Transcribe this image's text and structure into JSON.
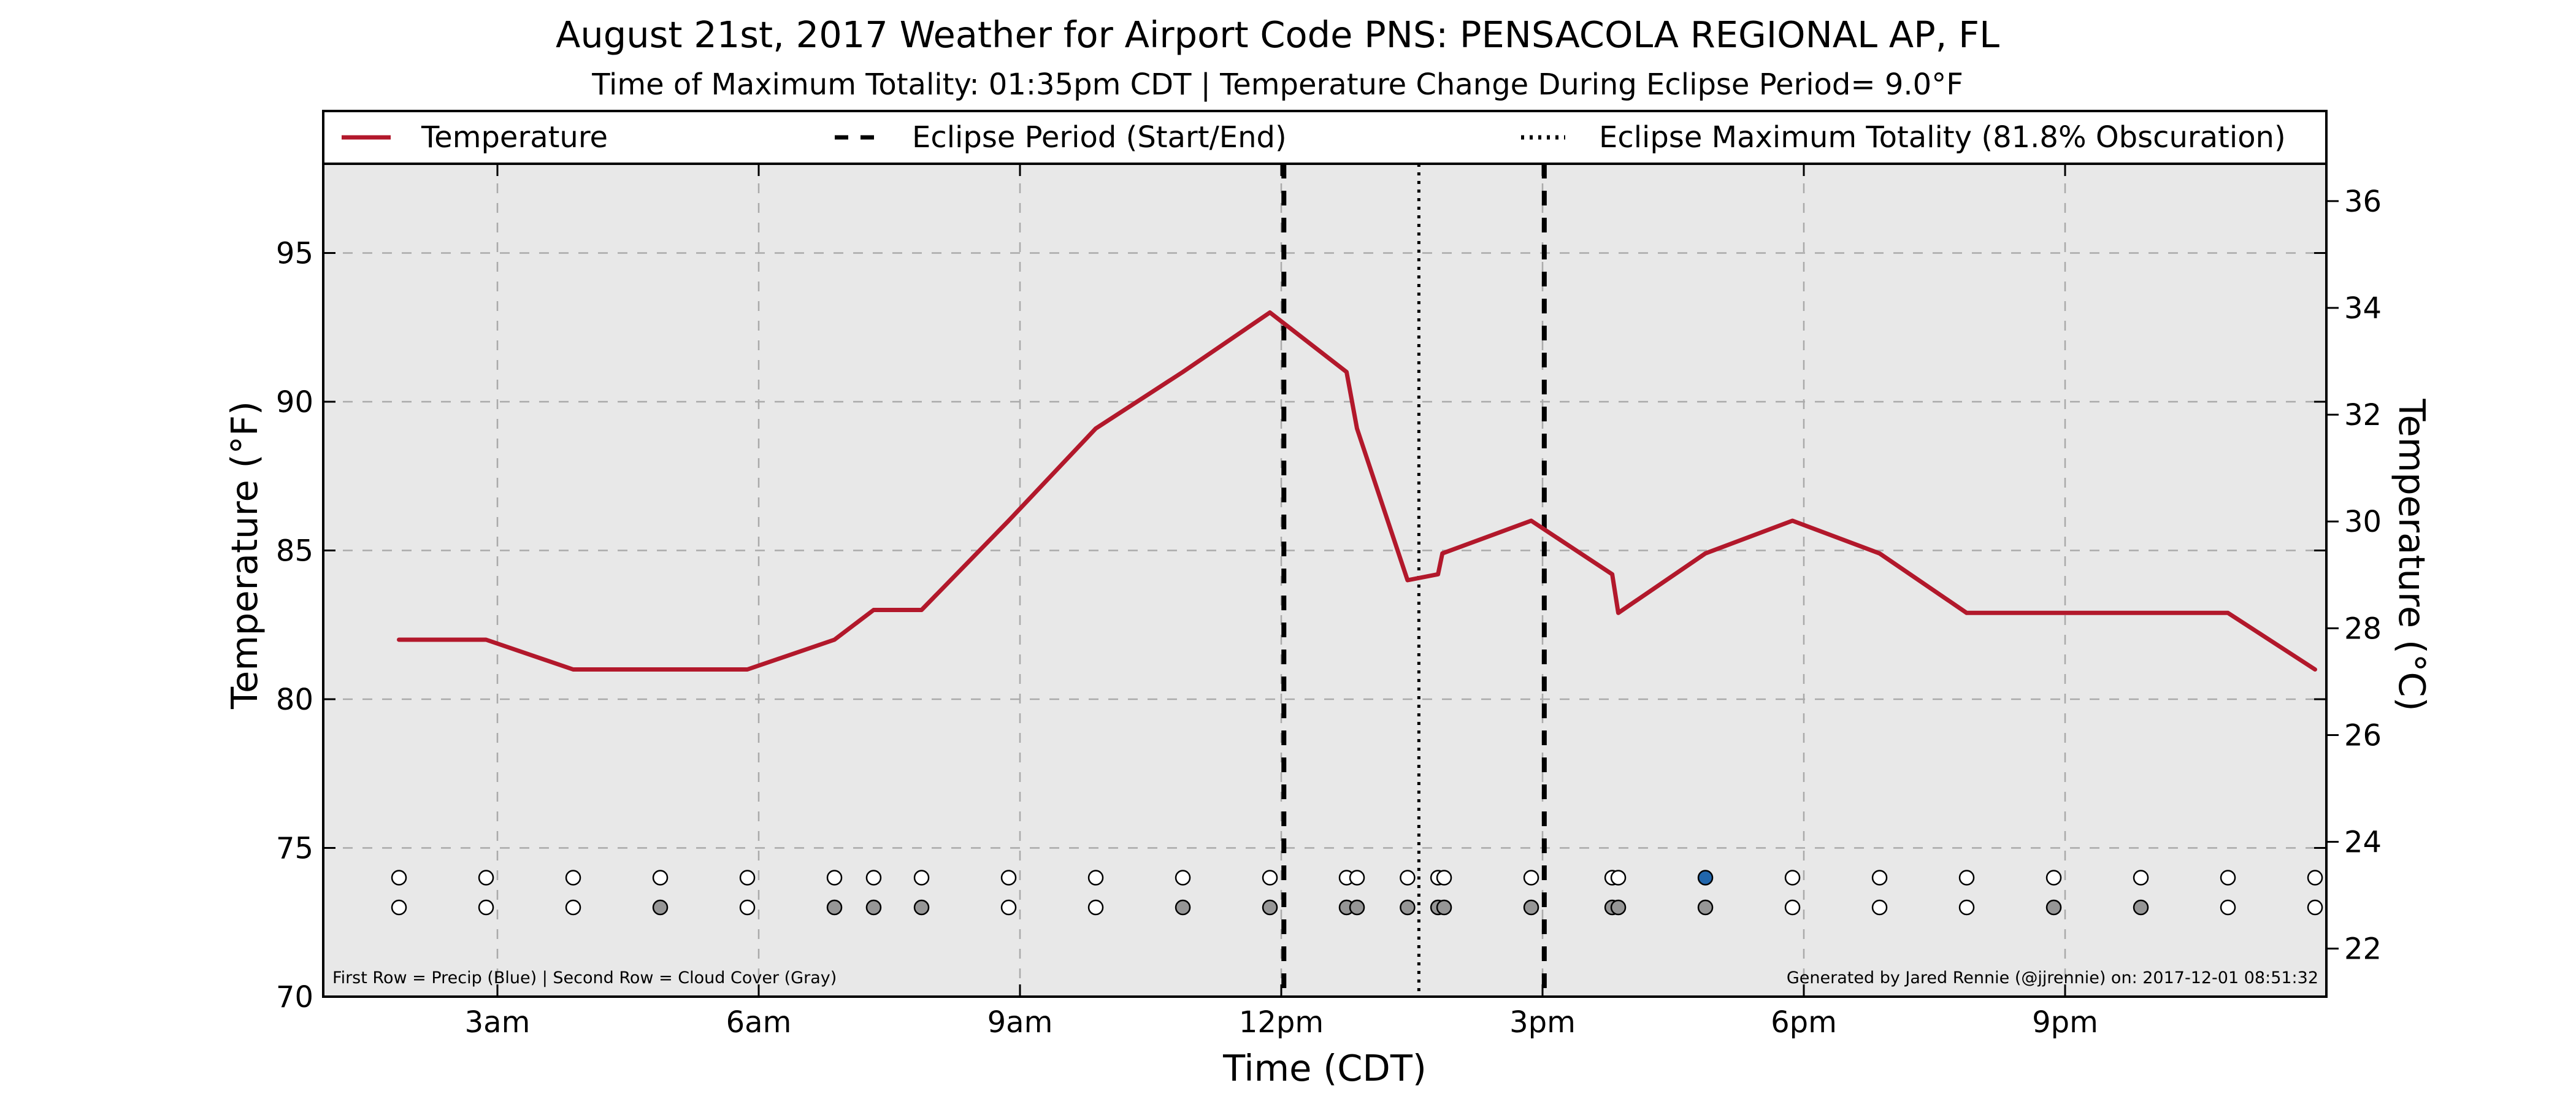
{
  "chart_data": {
    "type": "line",
    "title": "August 21st, 2017 Weather for Airport Code PNS: PENSACOLA REGIONAL AP, FL",
    "subtitle": "Time of Maximum Totality: 01:35pm CDT | Temperature Change During Eclipse Period= 9.0°F",
    "xlabel": "Time (CDT)",
    "ylabel": "Temperature (°F)",
    "y2label": "Temperature (°C)",
    "xlim_hours": [
      1.0,
      24.0
    ],
    "ylim": [
      70,
      98
    ],
    "y2lim": [
      21.1,
      36.7
    ],
    "x_ticks": [
      {
        "hour": 3,
        "label": "3am"
      },
      {
        "hour": 6,
        "label": "6am"
      },
      {
        "hour": 9,
        "label": "9am"
      },
      {
        "hour": 12,
        "label": "12pm"
      },
      {
        "hour": 15,
        "label": "3pm"
      },
      {
        "hour": 18,
        "label": "6pm"
      },
      {
        "hour": 21,
        "label": "9pm"
      }
    ],
    "y_ticks": [
      70,
      75,
      80,
      85,
      90,
      95
    ],
    "y2_ticks": [
      22,
      24,
      26,
      28,
      30,
      32,
      34,
      36
    ],
    "grid": true,
    "legend_position": "top",
    "legend": [
      {
        "label": "Temperature",
        "style": "solid"
      },
      {
        "label": "Eclipse Period (Start/End)",
        "style": "dashed"
      },
      {
        "label": "Eclipse Maximum Totality (81.8% Obscuration)",
        "style": "dotted"
      }
    ],
    "series": [
      {
        "name": "Temperature",
        "color": "#b2182b",
        "x": [
          1.87,
          2.87,
          3.87,
          4.87,
          5.87,
          6.87,
          7.32,
          7.87,
          8.87,
          9.87,
          10.87,
          11.87,
          12.75,
          12.87,
          13.45,
          13.8,
          13.85,
          14.87,
          15.8,
          15.87,
          16.87,
          17.87,
          18.87,
          19.87,
          20.87,
          21.87,
          22.87,
          23.87
        ],
        "y": [
          82,
          82,
          81,
          81,
          81,
          82,
          83,
          83,
          86,
          89.1,
          91,
          93,
          91,
          89.1,
          84,
          84.2,
          84.9,
          86,
          84.2,
          82.9,
          84.9,
          86,
          84.9,
          82.9,
          82.9,
          82.9,
          82.9,
          81
        ]
      }
    ],
    "eclipse_start_hour": 12.03,
    "eclipse_end_hour": 15.02,
    "eclipse_max_hour": 13.58,
    "observation_rows": {
      "precip_y": 74,
      "cloud_y": 73,
      "precip": [
        {
          "hour": 1.87,
          "color": "#ffffff"
        },
        {
          "hour": 2.87,
          "color": "#ffffff"
        },
        {
          "hour": 3.87,
          "color": "#ffffff"
        },
        {
          "hour": 4.87,
          "color": "#ffffff"
        },
        {
          "hour": 5.87,
          "color": "#ffffff"
        },
        {
          "hour": 6.87,
          "color": "#ffffff"
        },
        {
          "hour": 7.32,
          "color": "#ffffff"
        },
        {
          "hour": 7.87,
          "color": "#ffffff"
        },
        {
          "hour": 8.87,
          "color": "#ffffff"
        },
        {
          "hour": 9.87,
          "color": "#ffffff"
        },
        {
          "hour": 10.87,
          "color": "#ffffff"
        },
        {
          "hour": 11.87,
          "color": "#ffffff"
        },
        {
          "hour": 12.75,
          "color": "#ffffff"
        },
        {
          "hour": 12.87,
          "color": "#ffffff"
        },
        {
          "hour": 13.45,
          "color": "#ffffff"
        },
        {
          "hour": 13.8,
          "color": "#ffffff"
        },
        {
          "hour": 13.87,
          "color": "#ffffff"
        },
        {
          "hour": 14.87,
          "color": "#ffffff"
        },
        {
          "hour": 15.8,
          "color": "#ffffff"
        },
        {
          "hour": 15.87,
          "color": "#ffffff"
        },
        {
          "hour": 16.87,
          "color": "#2166ac"
        },
        {
          "hour": 17.87,
          "color": "#ffffff"
        },
        {
          "hour": 18.87,
          "color": "#ffffff"
        },
        {
          "hour": 19.87,
          "color": "#ffffff"
        },
        {
          "hour": 20.87,
          "color": "#ffffff"
        },
        {
          "hour": 21.87,
          "color": "#ffffff"
        },
        {
          "hour": 22.87,
          "color": "#ffffff"
        },
        {
          "hour": 23.87,
          "color": "#ffffff"
        }
      ],
      "cloud": [
        {
          "hour": 1.87,
          "color": "#ffffff"
        },
        {
          "hour": 2.87,
          "color": "#ffffff"
        },
        {
          "hour": 3.87,
          "color": "#ffffff"
        },
        {
          "hour": 4.87,
          "color": "#969696"
        },
        {
          "hour": 5.87,
          "color": "#ffffff"
        },
        {
          "hour": 6.87,
          "color": "#969696"
        },
        {
          "hour": 7.32,
          "color": "#969696"
        },
        {
          "hour": 7.87,
          "color": "#969696"
        },
        {
          "hour": 8.87,
          "color": "#ffffff"
        },
        {
          "hour": 9.87,
          "color": "#ffffff"
        },
        {
          "hour": 10.87,
          "color": "#969696"
        },
        {
          "hour": 11.87,
          "color": "#969696"
        },
        {
          "hour": 12.75,
          "color": "#969696"
        },
        {
          "hour": 12.87,
          "color": "#969696"
        },
        {
          "hour": 13.45,
          "color": "#969696"
        },
        {
          "hour": 13.8,
          "color": "#969696"
        },
        {
          "hour": 13.87,
          "color": "#969696"
        },
        {
          "hour": 14.87,
          "color": "#969696"
        },
        {
          "hour": 15.8,
          "color": "#969696"
        },
        {
          "hour": 15.87,
          "color": "#969696"
        },
        {
          "hour": 16.87,
          "color": "#969696"
        },
        {
          "hour": 17.87,
          "color": "#ffffff"
        },
        {
          "hour": 18.87,
          "color": "#ffffff"
        },
        {
          "hour": 19.87,
          "color": "#ffffff"
        },
        {
          "hour": 20.87,
          "color": "#969696"
        },
        {
          "hour": 21.87,
          "color": "#969696"
        },
        {
          "hour": 22.87,
          "color": "#ffffff"
        },
        {
          "hour": 23.87,
          "color": "#ffffff"
        }
      ]
    },
    "footnote_left": "First Row = Precip (Blue) | Second Row = Cloud Cover (Gray)",
    "footnote_right": "Generated by Jared Rennie (@jjrennie) on: 2017-12-01 08:51:32",
    "colors": {
      "plot_background": "#e8e8e8",
      "grid": "#aaaaaa",
      "temperature_line": "#b2182b",
      "eclipse_lines": "#000000"
    }
  }
}
